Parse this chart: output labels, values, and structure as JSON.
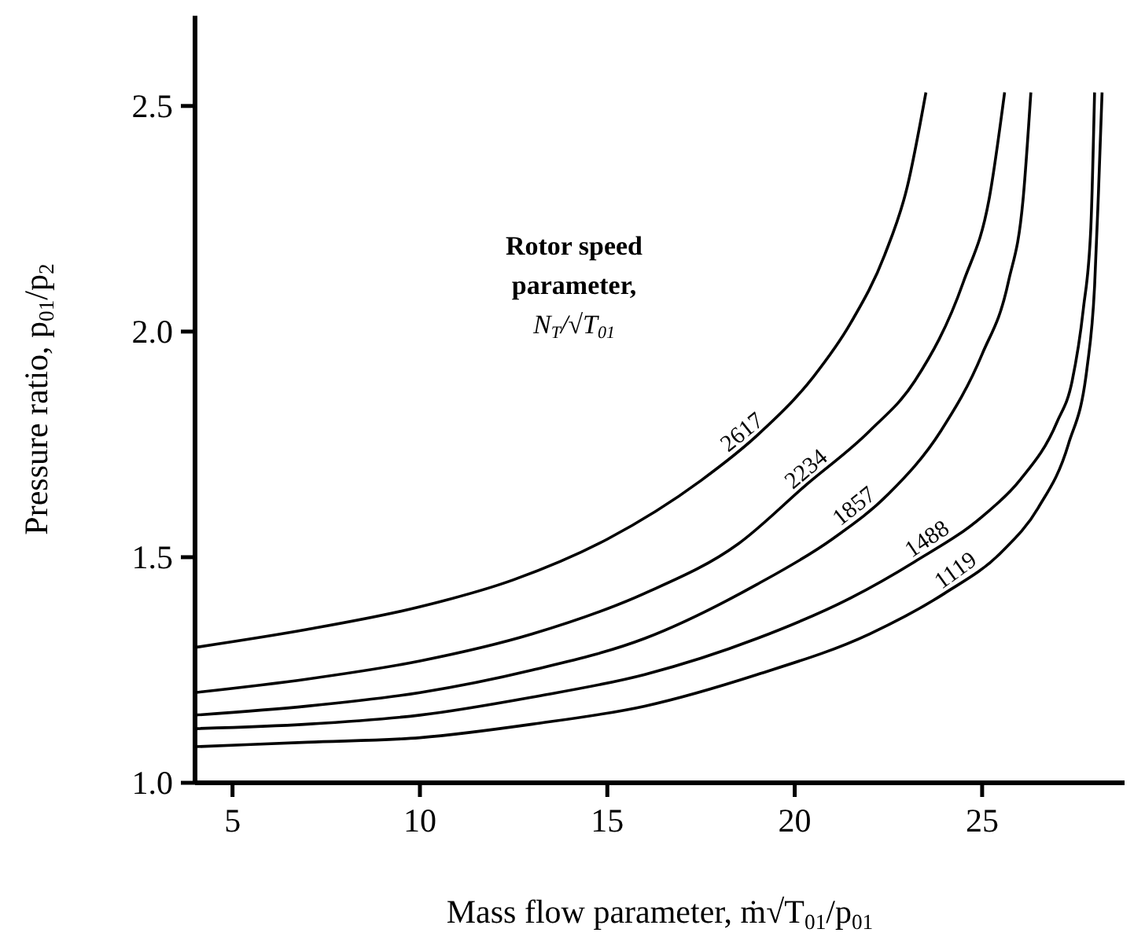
{
  "chart_data": {
    "type": "line",
    "xlabel": "Mass flow parameter, ṁ√T$_{01}$/p$_{01}$",
    "ylabel": "Pressure ratio, p$_{01}$/p$_{2}$",
    "legend_title": "Rotor speed parameter, N$_{T}$/√T$_{01}$",
    "xlim": [
      4,
      28.8
    ],
    "ylim": [
      1.0,
      2.7
    ],
    "xticks": [
      5,
      10,
      15,
      20,
      25
    ],
    "yticks": [
      {
        "value": 1.0,
        "label": "1.0"
      },
      1.5,
      {
        "value": 2.0,
        "label": "2.0"
      },
      2.5
    ],
    "grid": false,
    "marker": "none",
    "line_style": "solid",
    "series": [
      {
        "name": "2617",
        "color": "#000000",
        "x": [
          4,
          7,
          10,
          12.5,
          15,
          17.5,
          19,
          20.5,
          21.5,
          22.4,
          23,
          23.5
        ],
        "values": [
          1.3,
          1.34,
          1.39,
          1.45,
          1.54,
          1.67,
          1.77,
          1.9,
          2.02,
          2.17,
          2.32,
          2.53
        ]
      },
      {
        "name": "2234",
        "color": "#000000",
        "x": [
          4,
          7,
          10,
          13,
          16,
          18.5,
          20.3,
          22,
          23.2,
          24.5,
          25.2,
          25.6
        ],
        "values": [
          1.2,
          1.23,
          1.27,
          1.33,
          1.42,
          1.53,
          1.66,
          1.78,
          1.89,
          2.11,
          2.3,
          2.53
        ]
      },
      {
        "name": "1857",
        "color": "#000000",
        "x": [
          4,
          7,
          10,
          13,
          16,
          19,
          21,
          22.5,
          23.9,
          25,
          25.7,
          26.1,
          26.3
        ],
        "values": [
          1.15,
          1.17,
          1.2,
          1.25,
          1.32,
          1.44,
          1.54,
          1.64,
          1.78,
          1.95,
          2.11,
          2.3,
          2.53
        ]
      },
      {
        "name": "1488",
        "color": "#000000",
        "x": [
          4,
          7,
          10,
          13,
          16,
          19,
          21.5,
          23.2,
          25,
          26,
          27,
          27.4,
          27.7,
          27.9,
          28.0
        ],
        "values": [
          1.12,
          1.13,
          1.15,
          1.19,
          1.24,
          1.32,
          1.41,
          1.49,
          1.59,
          1.67,
          1.8,
          1.89,
          2.05,
          2.23,
          2.53
        ]
      },
      {
        "name": "1119",
        "color": "#000000",
        "x": [
          4,
          7,
          10,
          13,
          16,
          19,
          22,
          24,
          25.5,
          26.5,
          27.3,
          27.8,
          28.0,
          28.1,
          28.2
        ],
        "values": [
          1.08,
          1.09,
          1.1,
          1.13,
          1.17,
          1.24,
          1.33,
          1.42,
          1.51,
          1.61,
          1.75,
          1.92,
          2.1,
          2.3,
          2.53
        ]
      }
    ]
  }
}
